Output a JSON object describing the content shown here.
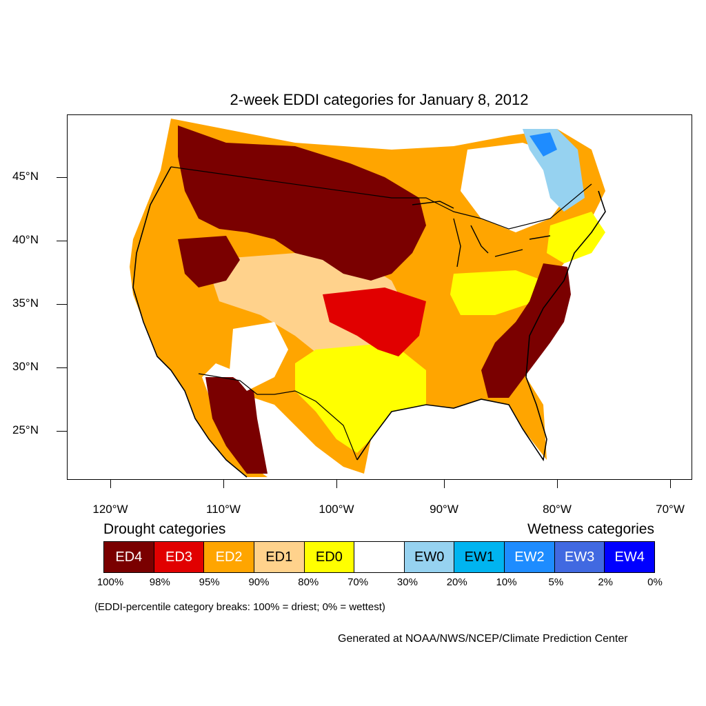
{
  "title": "2-week EDDI categories for January 8, 2012",
  "lat_labels": [
    "45°N",
    "40°N",
    "35°N",
    "30°N",
    "25°N"
  ],
  "lon_labels": [
    "120°W",
    "110°W",
    "100°W",
    "90°W",
    "80°W",
    "70°W"
  ],
  "legend": {
    "drought_heading": "Drought categories",
    "wetness_heading": "Wetness categories",
    "categories": [
      {
        "label": "ED4",
        "color": "#7a0000",
        "text_color": "#ffffff"
      },
      {
        "label": "ED3",
        "color": "#e10000",
        "text_color": "#ffffff"
      },
      {
        "label": "ED2",
        "color": "#ffa500",
        "text_color": "#ffffff"
      },
      {
        "label": "ED1",
        "color": "#ffd28c",
        "text_color": "#000000"
      },
      {
        "label": "ED0",
        "color": "#ffff00",
        "text_color": "#000000"
      },
      {
        "label": "",
        "color": "#ffffff",
        "text_color": "#000000"
      },
      {
        "label": "EW0",
        "color": "#96d2f0",
        "text_color": "#000000"
      },
      {
        "label": "EW1",
        "color": "#00b4f0",
        "text_color": "#000000"
      },
      {
        "label": "EW2",
        "color": "#1e8cff",
        "text_color": "#ffffff"
      },
      {
        "label": "EW3",
        "color": "#4169e1",
        "text_color": "#ffffff"
      },
      {
        "label": "EW4",
        "color": "#0000ff",
        "text_color": "#ffffff"
      }
    ],
    "percentiles": [
      "100%",
      "98%",
      "95%",
      "90%",
      "80%",
      "70%",
      "30%",
      "20%",
      "10%",
      "5%",
      "2%",
      "0%"
    ]
  },
  "note": "(EDDI-percentile category breaks: 100% = driest; 0% = wettest)",
  "credit": "Generated at NOAA/NWS/NCEP/Climate Prediction Center"
}
